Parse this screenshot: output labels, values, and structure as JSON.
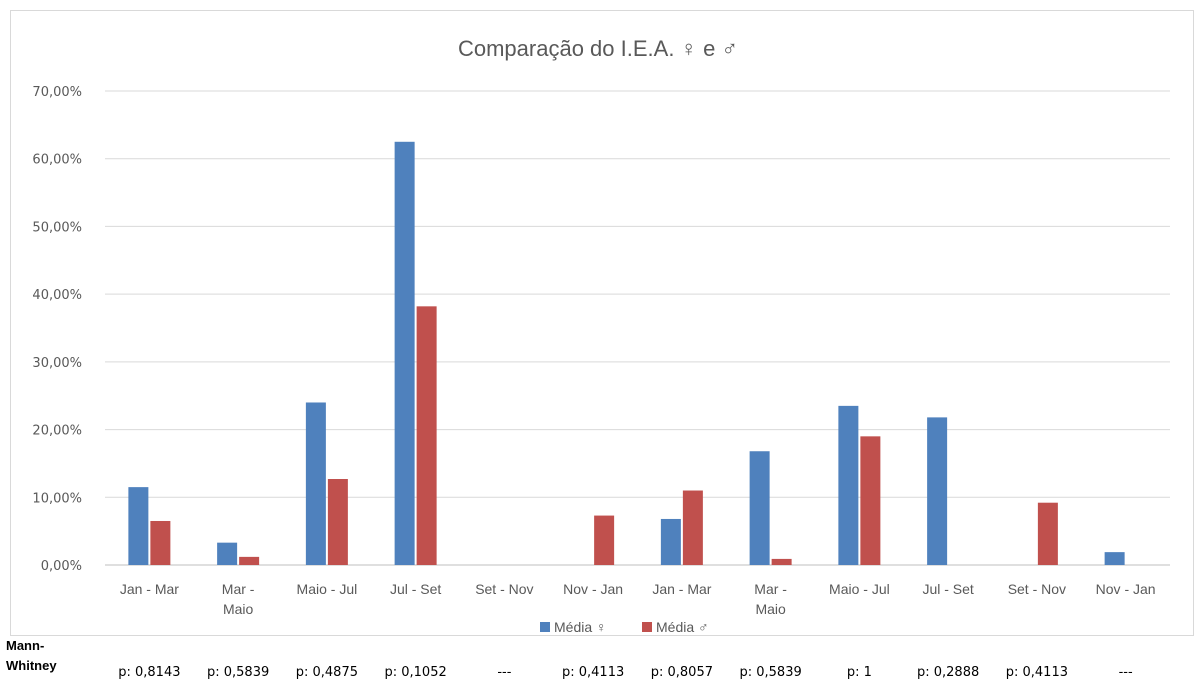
{
  "chart_data": {
    "type": "bar",
    "title": "Comparação do I.E.A. ♀ e ♂",
    "categories": [
      "Jan - Mar",
      "Mar - Maio",
      "Maio - Jul",
      "Jul - Set",
      "Set - Nov",
      "Nov - Jan",
      "Jan - Mar",
      "Mar - Maio",
      "Maio - Jul",
      "Jul - Set",
      "Set - Nov",
      "Nov - Jan"
    ],
    "series": [
      {
        "name": "Média ♀",
        "color": "#4f81bd",
        "values": [
          0.115,
          0.033,
          0.24,
          0.625,
          0,
          0,
          0.068,
          0.168,
          0.235,
          0.218,
          0,
          0.019
        ]
      },
      {
        "name": "Média ♂",
        "color": "#c0504d",
        "values": [
          0.065,
          0.012,
          0.127,
          0.382,
          0,
          0.073,
          0.11,
          0.009,
          0.19,
          0,
          0.092,
          0
        ]
      }
    ],
    "ylim": [
      0,
      0.7
    ],
    "yticks": [
      "0,00%",
      "10,00%",
      "20,00%",
      "30,00%",
      "40,00%",
      "50,00%",
      "60,00%",
      "70,00%"
    ],
    "grid": true,
    "legend": "bottom"
  },
  "mann_whitney": {
    "label": "Mann-\nWhitney",
    "values": [
      "p: 0,8143",
      "p: 0,5839",
      "p: 0,4875",
      "p: 0,1052",
      "---",
      "p: 0,4113",
      "p: 0,8057",
      "p: 0,5839",
      "p: 1",
      "p: 0,2888",
      "p: 0,4113",
      "---"
    ]
  }
}
